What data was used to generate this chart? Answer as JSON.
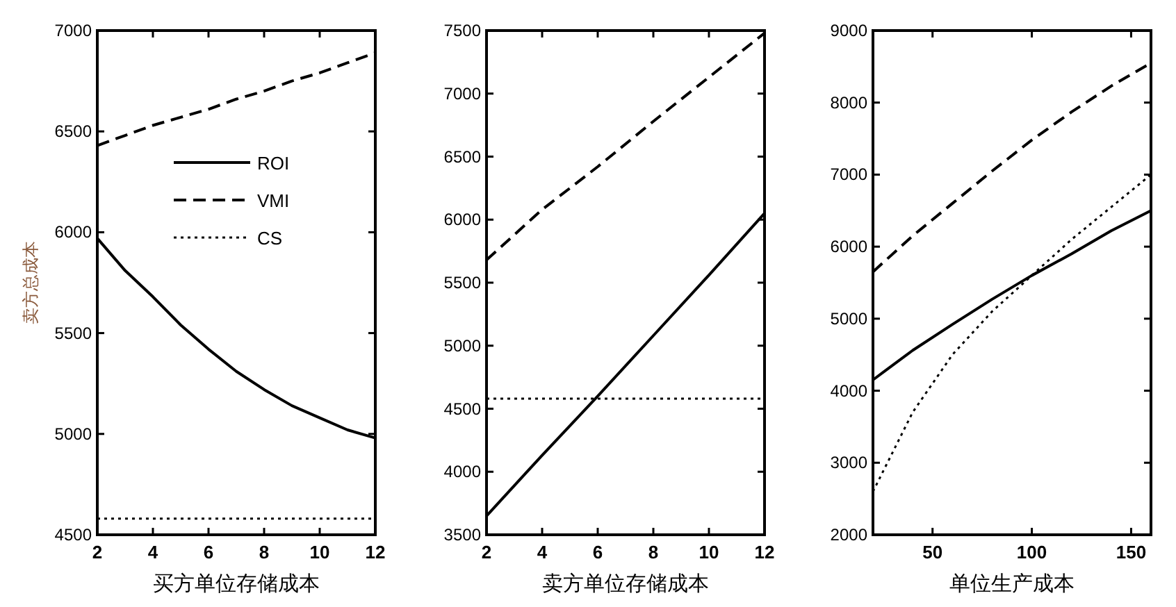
{
  "chart_data": [
    {
      "type": "line",
      "xlabel": "买方单位存储成本",
      "ylabel": "卖方总成本",
      "xlim": [
        2,
        12
      ],
      "ylim": [
        4500,
        7000
      ],
      "xticks": [
        2,
        4,
        6,
        8,
        10,
        12
      ],
      "yticks": [
        4500,
        5000,
        5500,
        6000,
        6500,
        7000
      ],
      "legend": "top",
      "x": [
        2,
        3,
        4,
        5,
        6,
        7,
        8,
        9,
        10,
        11,
        12
      ],
      "series": [
        {
          "name": "ROI",
          "color": "#000000",
          "line_style": "solid",
          "values": [
            5970,
            5810,
            5680,
            5540,
            5420,
            5310,
            5220,
            5140,
            5080,
            5020,
            4980
          ]
        },
        {
          "name": "VMI",
          "color": "#000000",
          "line_style": "dashed",
          "values": [
            6430,
            6480,
            6530,
            6570,
            6610,
            6660,
            6700,
            6750,
            6790,
            6840,
            6890
          ]
        },
        {
          "name": "CS",
          "color": "#000000",
          "line_style": "dotted",
          "values": [
            4580,
            4580,
            4580,
            4580,
            4580,
            4580,
            4580,
            4580,
            4580,
            4580,
            4580
          ]
        }
      ]
    },
    {
      "type": "line",
      "xlabel": "卖方单位存储成本",
      "xlim": [
        2,
        12
      ],
      "ylim": [
        3500,
        7500
      ],
      "xticks": [
        2,
        4,
        6,
        8,
        10,
        12
      ],
      "yticks": [
        3500,
        4000,
        4500,
        5000,
        5500,
        6000,
        6500,
        7000,
        7500
      ],
      "x": [
        2,
        4,
        6,
        8,
        10,
        12
      ],
      "series": [
        {
          "color": "#000000",
          "line_style": "solid",
          "values": [
            3650,
            4130,
            4600,
            5080,
            5560,
            6050
          ]
        },
        {
          "color": "#000000",
          "line_style": "dashed",
          "values": [
            5680,
            6080,
            6420,
            6780,
            7130,
            7480
          ]
        },
        {
          "color": "#000000",
          "line_style": "dotted",
          "values": [
            4580,
            4580,
            4580,
            4580,
            4580,
            4580
          ]
        }
      ]
    },
    {
      "type": "line",
      "xlabel": "单位生产成本",
      "xlim": [
        20,
        160
      ],
      "ylim": [
        2000,
        9000
      ],
      "xticks": [
        50,
        100,
        150
      ],
      "yticks": [
        2000,
        3000,
        4000,
        5000,
        6000,
        7000,
        8000,
        9000
      ],
      "x": [
        20,
        40,
        60,
        80,
        100,
        120,
        140,
        160
      ],
      "series": [
        {
          "color": "#000000",
          "line_style": "solid",
          "values": [
            4150,
            4560,
            4920,
            5270,
            5600,
            5900,
            6220,
            6500
          ]
        },
        {
          "color": "#000000",
          "line_style": "dashed",
          "values": [
            5650,
            6150,
            6600,
            7050,
            7480,
            7870,
            8230,
            8550
          ]
        },
        {
          "color": "#000000",
          "line_style": "dotted",
          "values": [
            2600,
            3700,
            4500,
            5100,
            5600,
            6100,
            6550,
            7000
          ]
        }
      ]
    }
  ]
}
